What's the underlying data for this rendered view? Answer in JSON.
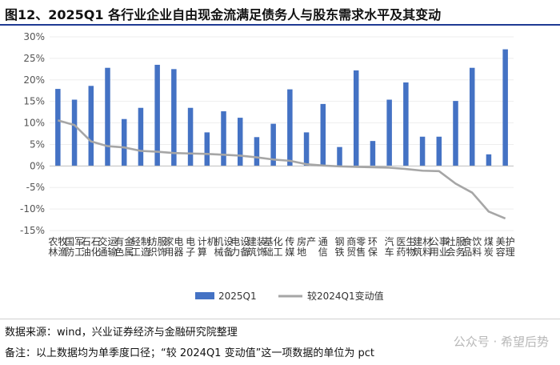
{
  "title": "图12、2025Q1 各行业企业自由现金流满足债务人与股东需求水平及其变动",
  "source": "数据来源：wind，兴业证券经济与金融研究院整理",
  "note": "备注：以上数据均为单季度口径；“较 2024Q1 变动值”这一项数据的单位为 pct",
  "watermark": "公众号 · 希望后势",
  "chart_data": {
    "type": "bar",
    "categories": [
      "农林牧渔",
      "国防军工",
      "石油石化",
      "交通运输",
      "有色金属",
      "轻工制造",
      "纺织服饰",
      "家用电器",
      "电子",
      "计算机",
      "机械设备",
      "电力设备",
      "建筑装饰",
      "基础化工",
      "传媒",
      "房地产",
      "通信",
      "钢铁",
      "商贸零售",
      "环保",
      "汽车",
      "医药生物",
      "建筑材料",
      "公用事业",
      "社会服务",
      "食品饮料",
      "煤炭",
      "美容护理"
    ],
    "series": [
      {
        "name": "2025Q1",
        "type": "bar",
        "color": "#4472C4",
        "values": [
          17.9,
          15.4,
          18.6,
          22.8,
          10.9,
          13.5,
          23.5,
          22.5,
          13.5,
          7.8,
          12.7,
          11.2,
          6.7,
          9.8,
          17.8,
          7.8,
          14.4,
          4.4,
          22.2,
          5.8,
          15.4,
          19.4,
          6.8,
          6.8,
          15.1,
          22.8,
          2.7,
          27.1
        ]
      },
      {
        "name": "较2024Q1变动值",
        "type": "line",
        "color": "#A6A6A6",
        "values": [
          10.6,
          9.5,
          5.7,
          4.6,
          4.3,
          3.5,
          3.3,
          3.0,
          2.9,
          2.8,
          2.6,
          2.4,
          2.0,
          1.5,
          1.2,
          0.4,
          0.1,
          -0.1,
          -0.2,
          -0.3,
          -0.4,
          -0.7,
          -1.1,
          -1.2,
          -4.1,
          -6.2,
          -10.6,
          -12.2
        ]
      }
    ],
    "yticks": [
      "30%",
      "25%",
      "20%",
      "15%",
      "10%",
      "5%",
      "0%",
      "-5%",
      "-10%",
      "-15%"
    ],
    "ylim": [
      -15,
      30
    ],
    "legend": [
      "2025Q1",
      "较2024Q1变动值"
    ],
    "legend_position": "bottom"
  }
}
